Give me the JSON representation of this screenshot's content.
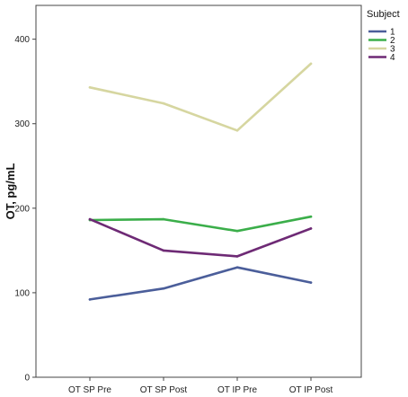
{
  "chart_data": {
    "type": "line",
    "categories": [
      "OT SP Pre",
      "OT SP Post",
      "OT IP Pre",
      "OT IP Post"
    ],
    "ylabel": "OT, pg/mL",
    "xlabel": "",
    "ylim": [
      0,
      440
    ],
    "yticks": [
      0,
      100,
      200,
      300,
      400
    ],
    "grid": false,
    "legend": {
      "title": "Subject",
      "placement": "top-right"
    },
    "series": [
      {
        "name": "1",
        "color": "#4b5e9a",
        "values": [
          92,
          105,
          130,
          112
        ]
      },
      {
        "name": "2",
        "color": "#3bae4a",
        "values": [
          186,
          187,
          173,
          190
        ]
      },
      {
        "name": "3",
        "color": "#d6d6a0",
        "values": [
          343,
          324,
          292,
          371
        ]
      },
      {
        "name": "4",
        "color": "#6e2a75",
        "values": [
          187,
          150,
          143,
          176
        ]
      }
    ]
  }
}
